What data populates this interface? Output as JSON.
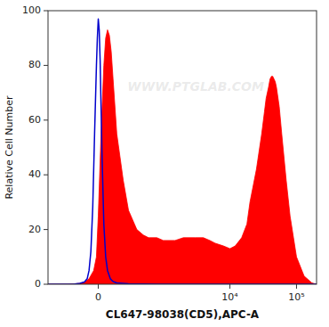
{
  "chart_data": {
    "type": "area",
    "xlabel": "CL647-98038(CD5),APC-A",
    "ylabel": "Relative Cell Number",
    "annotations": [
      {
        "text": "WWW.PTGLAB.COM"
      }
    ],
    "log": "x",
    "grid": false,
    "xlim": [
      -600,
      200000
    ],
    "xticks": [
      0,
      {
        "value": 10000,
        "label": "10⁴"
      },
      {
        "value": 100000,
        "label": "10⁵"
      }
    ],
    "ylim": [
      0,
      100
    ],
    "yticks": [
      0,
      20,
      40,
      60,
      80,
      100
    ],
    "series": [
      {
        "type": "area",
        "color": "#FF0000",
        "x": [
          -600,
          -500,
          -400,
          -300,
          -200,
          -150,
          -100,
          -50,
          -20,
          0,
          30,
          60,
          80,
          100,
          120,
          140,
          160,
          200,
          250,
          300,
          400,
          500,
          600,
          800,
          1000,
          1500,
          2000,
          3000,
          4000,
          5000,
          6000,
          8000,
          10000,
          12000,
          15000,
          18000,
          20000,
          25000,
          30000,
          33000,
          35000,
          38000,
          40000,
          42000,
          44000,
          46000,
          48000,
          50000,
          55000,
          60000,
          70000,
          80000,
          100000,
          130000,
          170000,
          200000
        ],
        "values": [
          0,
          0,
          0,
          0,
          0.3,
          0.8,
          2,
          5,
          10,
          25,
          55,
          80,
          90,
          93,
          91,
          85,
          75,
          55,
          38,
          27,
          20,
          18,
          17,
          17,
          16,
          16,
          17,
          17,
          17,
          16,
          15,
          14,
          13,
          14,
          17,
          22,
          30,
          42,
          55,
          63,
          68,
          72,
          75,
          76,
          76,
          75,
          74,
          72,
          65,
          55,
          38,
          25,
          10,
          3,
          0.5,
          0
        ]
      },
      {
        "type": "line",
        "color": "#0000CC",
        "x": [
          -600,
          -500,
          -400,
          -300,
          -250,
          -200,
          -150,
          -120,
          -100,
          -80,
          -60,
          -40,
          -20,
          -10,
          0,
          10,
          20,
          30,
          40,
          60,
          80,
          100,
          130,
          160,
          200,
          300,
          500,
          800,
          2000,
          10000,
          200000
        ],
        "values": [
          0,
          0,
          0,
          0,
          0,
          0.3,
          0.8,
          2,
          5,
          12,
          28,
          55,
          80,
          90,
          97,
          93,
          82,
          65,
          48,
          22,
          10,
          5,
          2,
          1,
          0.5,
          0.2,
          0.1,
          0,
          0,
          0,
          0
        ]
      }
    ]
  }
}
